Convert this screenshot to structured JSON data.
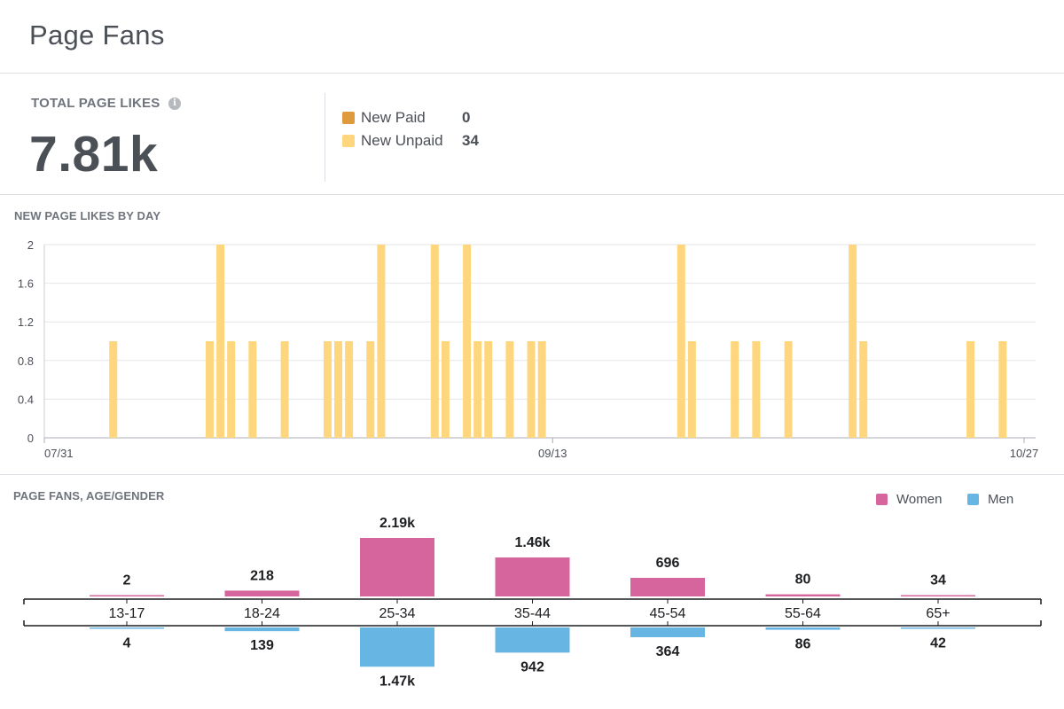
{
  "header": {
    "title": "Page Fans"
  },
  "summary": {
    "total_label": "TOTAL PAGE LIKES",
    "info_icon": "info-icon",
    "total_value": "7.81k",
    "legend": [
      {
        "label": "New Paid",
        "value": "0",
        "color": "#e09a3e"
      },
      {
        "label": "New Unpaid",
        "value": "34",
        "color": "#fed67d"
      }
    ]
  },
  "chart_data": [
    {
      "type": "bar",
      "title": "NEW PAGE LIKES BY DAY",
      "x_start": "07/31",
      "x_end": "10/27",
      "x_ticks": [
        "07/31",
        "09/13",
        "10/27"
      ],
      "ylim": [
        0,
        2
      ],
      "y_ticks": [
        "0",
        "0.4",
        "0.8",
        "1.2",
        "1.6",
        "2"
      ],
      "grid": true,
      "bar_color": "#fed67d",
      "points": [
        {
          "date": "08/03",
          "value": 1
        },
        {
          "date": "08/12",
          "value": 1
        },
        {
          "date": "08/13",
          "value": 2
        },
        {
          "date": "08/14",
          "value": 1
        },
        {
          "date": "08/16",
          "value": 1
        },
        {
          "date": "08/19",
          "value": 1
        },
        {
          "date": "08/23",
          "value": 1
        },
        {
          "date": "08/24",
          "value": 1
        },
        {
          "date": "08/25",
          "value": 1
        },
        {
          "date": "08/27",
          "value": 1
        },
        {
          "date": "08/28",
          "value": 2
        },
        {
          "date": "09/02",
          "value": 2
        },
        {
          "date": "09/03",
          "value": 1
        },
        {
          "date": "09/05",
          "value": 2
        },
        {
          "date": "09/06",
          "value": 1
        },
        {
          "date": "09/07",
          "value": 1
        },
        {
          "date": "09/09",
          "value": 1
        },
        {
          "date": "09/11",
          "value": 1
        },
        {
          "date": "09/12",
          "value": 1
        },
        {
          "date": "09/25",
          "value": 2
        },
        {
          "date": "09/26",
          "value": 1
        },
        {
          "date": "09/30",
          "value": 1
        },
        {
          "date": "10/02",
          "value": 1
        },
        {
          "date": "10/05",
          "value": 1
        },
        {
          "date": "10/11",
          "value": 2
        },
        {
          "date": "10/12",
          "value": 1
        },
        {
          "date": "10/22",
          "value": 1
        },
        {
          "date": "10/25",
          "value": 1
        }
      ]
    },
    {
      "type": "bar",
      "title": "PAGE FANS, AGE/GENDER",
      "legend_position": "top-right",
      "categories": [
        "13-17",
        "18-24",
        "25-34",
        "35-44",
        "45-54",
        "55-64",
        "65+"
      ],
      "series": [
        {
          "name": "Women",
          "color": "#d6649d",
          "values": [
            2,
            218,
            2190,
            1460,
            696,
            80,
            34
          ],
          "labels": [
            "2",
            "218",
            "2.19k",
            "1.46k",
            "696",
            "80",
            "34"
          ]
        },
        {
          "name": "Men",
          "color": "#67b5e2",
          "values": [
            4,
            139,
            1470,
            942,
            364,
            86,
            42
          ],
          "labels": [
            "4",
            "139",
            "1.47k",
            "942",
            "364",
            "86",
            "42"
          ]
        }
      ]
    }
  ]
}
